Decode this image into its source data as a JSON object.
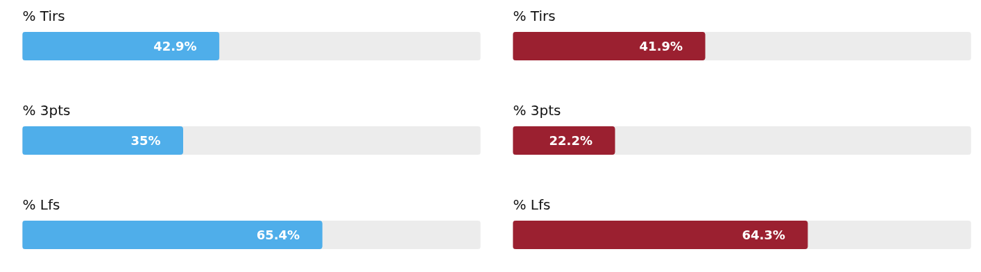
{
  "chart_data": [
    {
      "type": "bar",
      "orientation": "horizontal",
      "categories": [
        "% Tirs",
        "% 3pts",
        "% Lfs"
      ],
      "values": [
        42.9,
        35,
        65.4
      ],
      "color": "#4faeea",
      "value_labels": [
        "42.9%",
        "35%",
        "65.4%"
      ],
      "xlim": [
        0,
        100
      ],
      "tick_labels": false,
      "grid": false
    },
    {
      "type": "bar",
      "orientation": "horizontal",
      "categories": [
        "% Tirs",
        "% 3pts",
        "% Lfs"
      ],
      "values": [
        41.9,
        22.2,
        64.3
      ],
      "color": "#9b2030",
      "value_labels": [
        "41.9%",
        "22.2%",
        "64.3%"
      ],
      "xlim": [
        0,
        100
      ],
      "tick_labels": false,
      "grid": false
    }
  ]
}
